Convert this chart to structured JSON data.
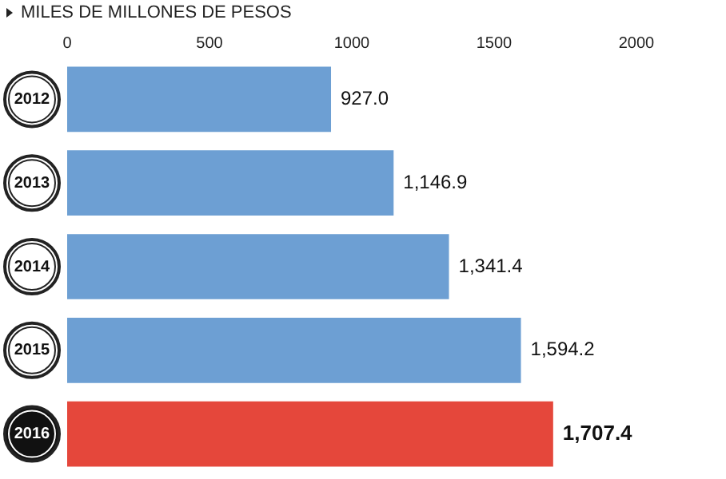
{
  "chart_data": {
    "type": "bar",
    "orientation": "horizontal",
    "title": "MILES DE MILLONES DE PESOS",
    "categories": [
      "2012",
      "2013",
      "2014",
      "2015",
      "2016"
    ],
    "values": [
      927.0,
      1146.9,
      1341.4,
      1594.2,
      1707.4
    ],
    "colors": [
      "#6d9fd3",
      "#6d9fd3",
      "#6d9fd3",
      "#6d9fd3",
      "#e5473b"
    ],
    "value_labels": [
      "927.0",
      "1,146.9",
      "1,341.4",
      "1,594.2",
      "1,707.4"
    ],
    "xlim": [
      0,
      2000
    ],
    "xticks": [
      0,
      500,
      1000,
      1500,
      2000
    ],
    "grid": false,
    "legend": false
  }
}
